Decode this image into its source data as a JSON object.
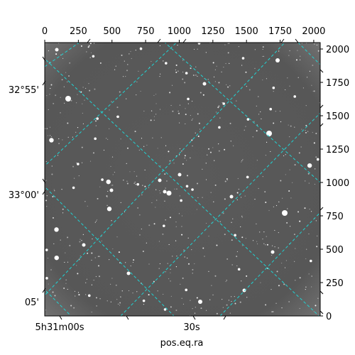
{
  "figure": {
    "xlabel": "pos.eq.ra",
    "top_axis_ticks": [
      "0",
      "250",
      "500",
      "750",
      "1000",
      "1250",
      "1500",
      "1750",
      "2000"
    ],
    "right_axis_ticks": [
      "0",
      "250",
      "500",
      "750",
      "1000",
      "1250",
      "1500",
      "1750",
      "2000"
    ],
    "left_dec_labels": [
      "32°55'",
      "33°00'",
      "05'"
    ],
    "bottom_ra_labels": [
      "5h31m00s",
      "30s"
    ],
    "grid_color": "#20d4d4",
    "image_background": "#595959"
  }
}
